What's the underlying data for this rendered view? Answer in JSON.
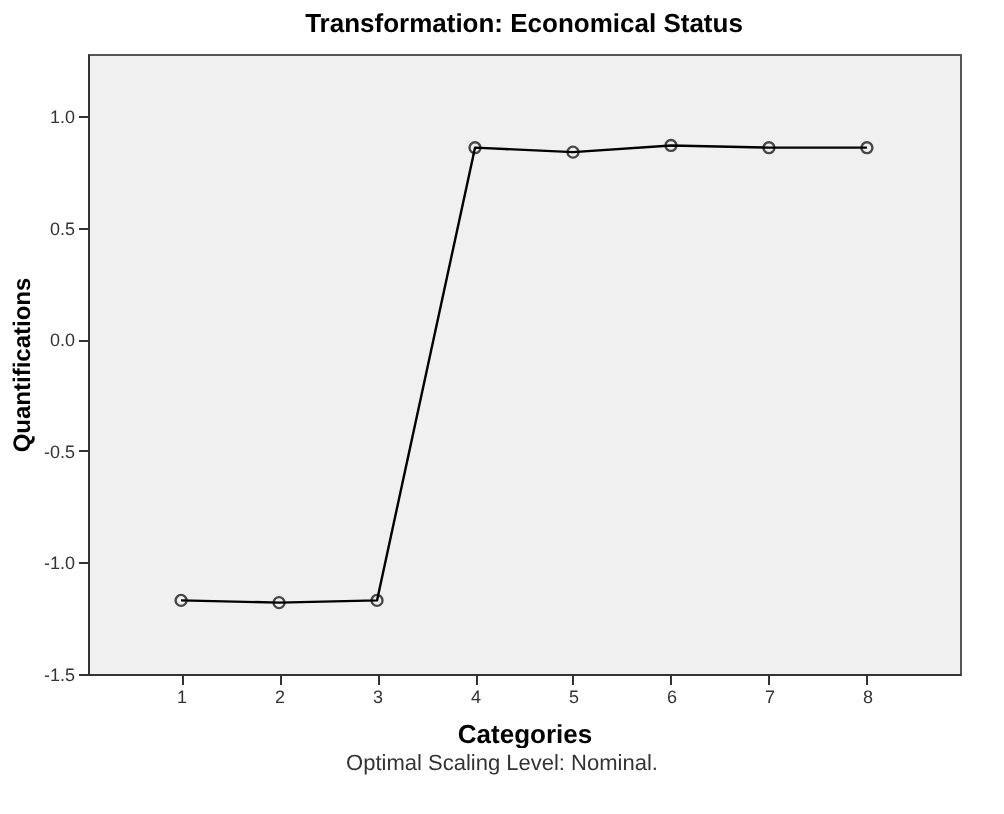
{
  "chart_data": {
    "type": "line",
    "title": "Transformation: Economical Status",
    "xlabel": "Categories",
    "ylabel": "Quantifications",
    "categories": [
      "1",
      "2",
      "3",
      "4",
      "5",
      "6",
      "7",
      "8"
    ],
    "series": [
      {
        "color": "#000000",
        "values": [
          -1.17,
          -1.18,
          -1.17,
          0.86,
          0.84,
          0.87,
          0.86,
          0.86
        ]
      }
    ],
    "ylim": [
      -1.5,
      1.28
    ],
    "yticks": [
      -1.5,
      {
        "value": -1,
        "label": "-1.0"
      },
      -0.5,
      {
        "value": 0,
        "label": "0.0"
      },
      0.5,
      {
        "value": 1,
        "label": "1.0"
      }
    ],
    "grid": false,
    "legend": false,
    "marker": "circle",
    "line_style": "solid",
    "annotations": [
      "Optimal Scaling Level: Nominal."
    ]
  }
}
